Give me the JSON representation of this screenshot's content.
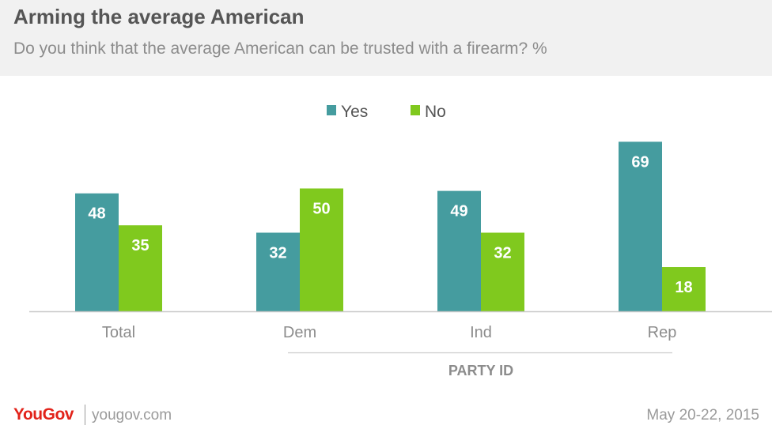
{
  "header": {
    "title": "Arming the average American",
    "subtitle": "Do you think that the average American can be trusted with a firearm? %"
  },
  "footer": {
    "brand": "YouGov",
    "site": "yougov.com",
    "date": "May 20-22, 2015"
  },
  "colors": {
    "yes": "#459c9f",
    "no": "#80c91e",
    "header_bg": "#f1f1f1"
  },
  "chart_data": {
    "type": "bar",
    "categories": [
      "Total",
      "Dem",
      "Ind",
      "Rep"
    ],
    "series": [
      {
        "name": "Yes",
        "values": [
          48,
          32,
          49,
          69
        ]
      },
      {
        "name": "No",
        "values": [
          35,
          50,
          32,
          18
        ]
      }
    ],
    "group_label": "PARTY ID",
    "legend_position": "top-center",
    "grid": false
  }
}
